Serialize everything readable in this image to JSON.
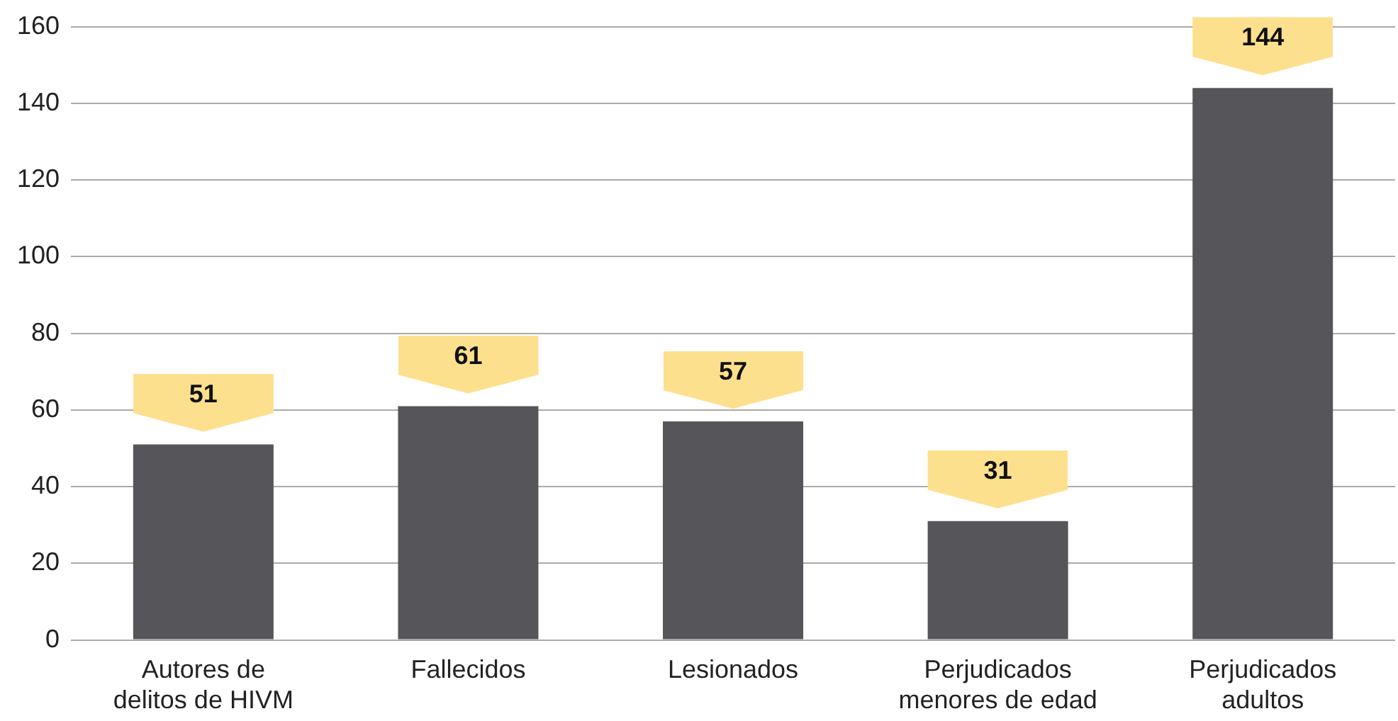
{
  "chart_data": {
    "type": "bar",
    "categories": [
      "Autores de delitos de HIVM",
      "Fallecidos",
      "Lesionados",
      "Perjudicados menores de edad",
      "Perjudicados adultos"
    ],
    "values": [
      51,
      61,
      57,
      31,
      144
    ],
    "color": "#55555a",
    "ylim": [
      0,
      160
    ],
    "yticks": [
      0,
      20,
      40,
      60,
      80,
      100,
      120,
      140,
      160
    ],
    "grid": "y",
    "data_labels": true,
    "legend": false
  }
}
